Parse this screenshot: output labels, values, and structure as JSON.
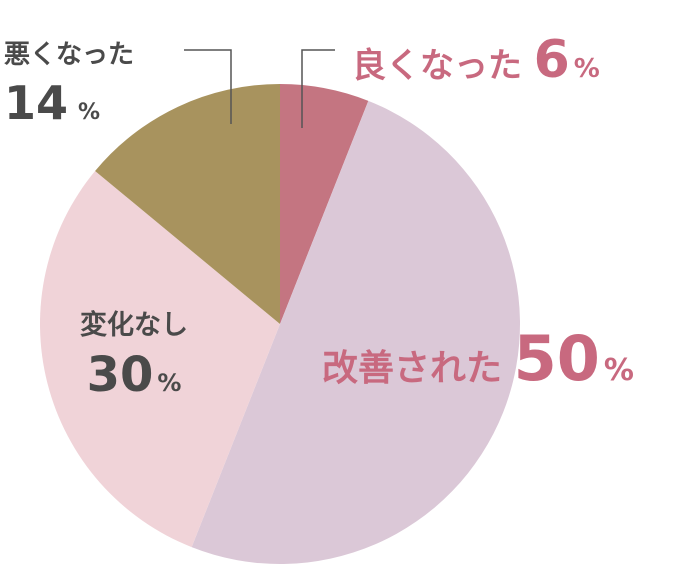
{
  "chart_data": {
    "type": "pie",
    "slices": [
      {
        "label": "良くなった",
        "value": 6,
        "color": "#c47581",
        "label_color": "#c8697f"
      },
      {
        "label": "改善された",
        "value": 50,
        "color": "#dbc8d7",
        "label_color": "#c8697f"
      },
      {
        "label": "変化なし",
        "value": 30,
        "color": "#f0d3d8",
        "label_color": "#4a4a4a"
      },
      {
        "label": "悪くなった",
        "value": 14,
        "color": "#a8935e",
        "label_color": "#4a4a4a"
      }
    ],
    "unit": "%",
    "start_angle": "12 o'clock",
    "direction": "clockwise"
  }
}
